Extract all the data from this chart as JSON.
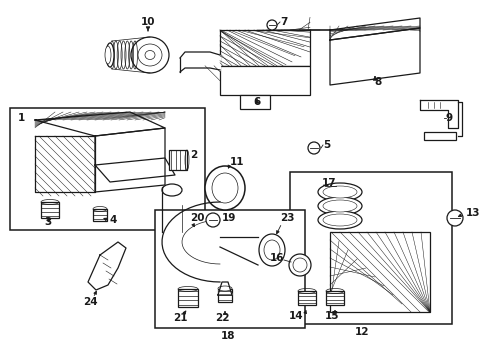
{
  "bg_color": "#ffffff",
  "lc": "#1a1a1a",
  "fig_width": 4.89,
  "fig_height": 3.6,
  "dpi": 100,
  "fs": 7.5,
  "fw": "bold"
}
